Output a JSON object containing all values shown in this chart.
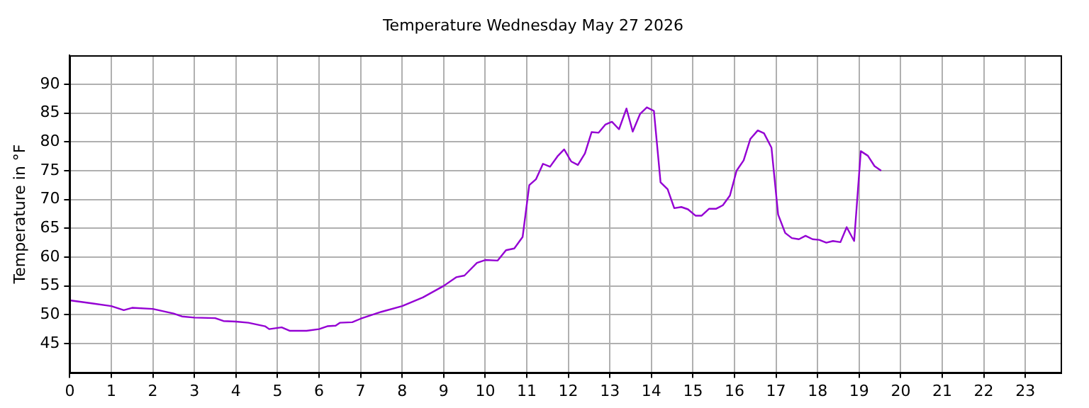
{
  "chart_data": {
    "type": "line",
    "title": "Temperature Wednesday May 27 2026",
    "ylabel": "Temperature in °F",
    "xlim": [
      0,
      23.85
    ],
    "xticks": [
      0,
      1,
      2,
      3,
      4,
      5,
      6,
      7,
      8,
      9,
      10,
      11,
      12,
      13,
      14,
      15,
      16,
      17,
      18,
      19,
      20,
      21,
      22,
      23
    ],
    "ylim": [
      40,
      95
    ],
    "yticks": [
      45,
      50,
      55,
      60,
      65,
      70,
      75,
      80,
      85,
      90
    ],
    "grid": true,
    "legend": false,
    "marker": "none",
    "line_style": "solid",
    "series": [
      {
        "color": "#9400d3",
        "x": [
          0,
          0.5,
          1.0,
          1.3,
          1.5,
          2.0,
          2.5,
          2.7,
          3.0,
          3.5,
          3.7,
          4.0,
          4.3,
          4.7,
          4.8,
          5.1,
          5.3,
          5.7,
          6.0,
          6.2,
          6.4,
          6.5,
          6.8,
          7.0,
          7.5,
          8.0,
          8.5,
          9.0,
          9.3,
          9.5,
          9.8,
          10.0,
          10.3,
          10.5,
          10.7,
          10.9,
          11.06,
          11.22,
          11.39,
          11.56,
          11.74,
          11.9,
          12.07,
          12.23,
          12.4,
          12.56,
          12.73,
          12.89,
          13.05,
          13.22,
          13.4,
          13.55,
          13.73,
          13.89,
          14.06,
          14.22,
          14.39,
          14.55,
          14.72,
          14.88,
          15.06,
          15.21,
          15.39,
          15.56,
          15.72,
          15.89,
          16.05,
          16.22,
          16.38,
          16.56,
          16.71,
          16.89,
          17.05,
          17.22,
          17.38,
          17.55,
          17.71,
          17.88,
          18.04,
          18.21,
          18.37,
          18.55,
          18.7,
          18.88,
          19.04,
          19.21,
          19.37,
          19.53
        ],
        "values": [
          52.5,
          52,
          51.5,
          50.8,
          51.2,
          51,
          50.2,
          49.7,
          49.5,
          49.4,
          48.9,
          48.8,
          48.6,
          48,
          47.5,
          47.8,
          47.2,
          47.2,
          47.5,
          48,
          48.1,
          48.6,
          48.7,
          49.3,
          50.5,
          51.5,
          53,
          55,
          56.5,
          56.8,
          59,
          59.5,
          59.4,
          61.2,
          61.5,
          63.5,
          72.5,
          73.5,
          76.2,
          75.7,
          77.5,
          78.7,
          76.6,
          76,
          78,
          81.7,
          81.6,
          83,
          83.5,
          82.2,
          85.8,
          81.8,
          84.9,
          86,
          85.4,
          73,
          71.8,
          68.5,
          68.7,
          68.3,
          67.2,
          67.2,
          68.4,
          68.4,
          69,
          70.7,
          75,
          76.8,
          80.5,
          82,
          81.5,
          79,
          67.4,
          64.2,
          63.3,
          63.1,
          63.7,
          63.1,
          63,
          62.5,
          62.8,
          62.6,
          65.2,
          62.8,
          78.4,
          77.6,
          75.8,
          75
        ]
      }
    ]
  }
}
